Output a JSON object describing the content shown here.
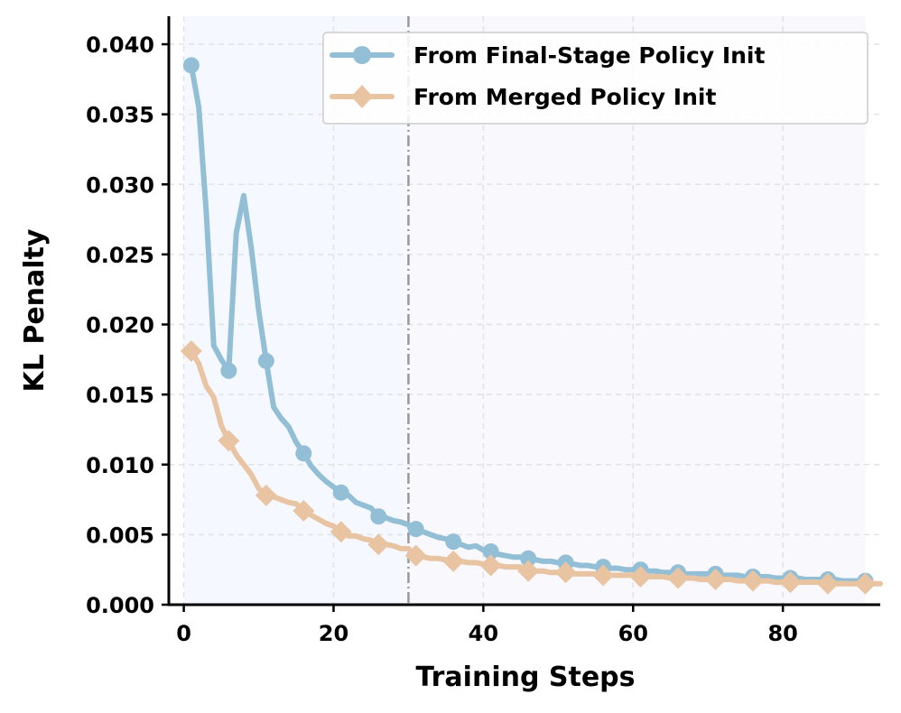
{
  "chart_data": {
    "type": "line",
    "title": "",
    "xlabel": "Training Steps",
    "ylabel": "KL Penalty",
    "xlim": [
      -2,
      93
    ],
    "ylim": [
      0,
      0.042
    ],
    "xticks": [
      0,
      20,
      40,
      60,
      80
    ],
    "xtick_labels": [
      "0",
      "20",
      "40",
      "60",
      "80"
    ],
    "yticks": [
      0,
      0.005,
      0.01,
      0.015,
      0.02,
      0.025,
      0.03,
      0.035,
      0.04
    ],
    "ytick_labels": [
      "0.000",
      "0.005",
      "0.010",
      "0.015",
      "0.020",
      "0.025",
      "0.030",
      "0.035",
      "0.040"
    ],
    "grid": true,
    "shaded_regions": [
      {
        "x_start": 0,
        "x_end": 30,
        "color": "#f5f9ff"
      },
      {
        "x_start": 30,
        "x_end": 91,
        "color": "#f8f8fd"
      }
    ],
    "vline": {
      "x": 30,
      "color": "#999999",
      "style": "dash-dot"
    },
    "legend_position": "top-right",
    "series": [
      {
        "name": "From Final-Stage Policy Init",
        "color": "#92bfd6",
        "marker": "circle",
        "x": [
          1,
          2,
          3,
          4,
          5,
          6,
          7,
          8,
          9,
          10,
          11,
          12,
          13,
          14,
          15,
          16,
          17,
          18,
          19,
          20,
          21,
          22,
          23,
          24,
          25,
          26,
          27,
          28,
          29,
          30,
          31,
          32,
          33,
          34,
          35,
          36,
          37,
          38,
          39,
          40,
          41,
          42,
          43,
          44,
          45,
          46,
          47,
          48,
          49,
          50,
          51,
          52,
          53,
          54,
          55,
          56,
          57,
          58,
          59,
          60,
          61,
          62,
          63,
          64,
          65,
          66,
          67,
          68,
          69,
          70,
          71,
          72,
          73,
          74,
          75,
          76,
          77,
          78,
          79,
          80,
          81,
          82,
          83,
          84,
          85,
          86,
          87,
          88,
          89,
          90,
          91
        ],
        "y": [
          0.0385,
          0.0355,
          0.028,
          0.0185,
          0.0175,
          0.0167,
          0.0265,
          0.0292,
          0.0255,
          0.021,
          0.0174,
          0.0141,
          0.0133,
          0.0127,
          0.0116,
          0.0108,
          0.0099,
          0.0093,
          0.0088,
          0.0084,
          0.008,
          0.0078,
          0.0073,
          0.0071,
          0.0069,
          0.0063,
          0.0062,
          0.006,
          0.0059,
          0.0057,
          0.0054,
          0.0052,
          0.005,
          0.0048,
          0.0047,
          0.0045,
          0.0043,
          0.0041,
          0.0042,
          0.0039,
          0.0038,
          0.0036,
          0.0035,
          0.0034,
          0.0034,
          0.0033,
          0.0032,
          0.0031,
          0.0031,
          0.003,
          0.003,
          0.0029,
          0.0028,
          0.0028,
          0.0027,
          0.0027,
          0.0026,
          0.0026,
          0.0025,
          0.0025,
          0.0025,
          0.0024,
          0.0024,
          0.0023,
          0.0023,
          0.0023,
          0.0022,
          0.0022,
          0.0022,
          0.0022,
          0.0022,
          0.0021,
          0.0021,
          0.0021,
          0.002,
          0.002,
          0.002,
          0.002,
          0.0019,
          0.0019,
          0.0019,
          0.0019,
          0.0018,
          0.0018,
          0.0018,
          0.0018,
          0.0018,
          0.0017,
          0.0017,
          0.0017,
          0.0017
        ],
        "marker_x": [
          1,
          6,
          11,
          16,
          21,
          26,
          31,
          36,
          41,
          46,
          51,
          56,
          61,
          66,
          71,
          76,
          81,
          86,
          91
        ]
      },
      {
        "name": "From Merged Policy Init",
        "color": "#e9c4a2",
        "marker": "diamond",
        "x": [
          1,
          2,
          3,
          4,
          5,
          6,
          7,
          8,
          9,
          10,
          11,
          12,
          13,
          14,
          15,
          16,
          17,
          18,
          19,
          20,
          21,
          22,
          23,
          24,
          25,
          26,
          27,
          28,
          29,
          30,
          31,
          32,
          33,
          34,
          35,
          36,
          37,
          38,
          39,
          40,
          41,
          42,
          43,
          44,
          45,
          46,
          47,
          48,
          49,
          50,
          51,
          52,
          53,
          54,
          55,
          56,
          57,
          58,
          59,
          60,
          61,
          62,
          63,
          64,
          65,
          66,
          67,
          68,
          69,
          70,
          71,
          72,
          73,
          74,
          75,
          76,
          77,
          78,
          79,
          80,
          81,
          82,
          83,
          84,
          85,
          86,
          87,
          88,
          89,
          90,
          91,
          92,
          93
        ],
        "y": [
          0.0181,
          0.0172,
          0.0156,
          0.0148,
          0.0128,
          0.0117,
          0.0107,
          0.01,
          0.0093,
          0.0083,
          0.0078,
          0.0077,
          0.0075,
          0.0073,
          0.0072,
          0.0067,
          0.0064,
          0.0061,
          0.0058,
          0.0056,
          0.0052,
          0.0049,
          0.0049,
          0.0047,
          0.0046,
          0.0043,
          0.0043,
          0.0042,
          0.004,
          0.004,
          0.0035,
          0.0034,
          0.0033,
          0.0033,
          0.0032,
          0.0031,
          0.0031,
          0.003,
          0.003,
          0.0029,
          0.0028,
          0.0028,
          0.0027,
          0.0027,
          0.0027,
          0.0024,
          0.0024,
          0.0024,
          0.0023,
          0.0023,
          0.0023,
          0.0022,
          0.0022,
          0.0022,
          0.0022,
          0.0021,
          0.0021,
          0.0021,
          0.0021,
          0.0021,
          0.002,
          0.002,
          0.002,
          0.002,
          0.0019,
          0.0019,
          0.0019,
          0.0019,
          0.0018,
          0.0018,
          0.0018,
          0.0018,
          0.0018,
          0.0017,
          0.0017,
          0.0017,
          0.0017,
          0.0017,
          0.0016,
          0.0016,
          0.0016,
          0.0016,
          0.0016,
          0.0016,
          0.0016,
          0.0015,
          0.0015,
          0.0015,
          0.0015,
          0.0015,
          0.0015,
          0.0015,
          0.0015
        ],
        "marker_x": [
          1,
          6,
          11,
          16,
          21,
          26,
          31,
          36,
          41,
          46,
          51,
          56,
          61,
          66,
          71,
          76,
          81,
          86,
          91
        ]
      }
    ]
  }
}
